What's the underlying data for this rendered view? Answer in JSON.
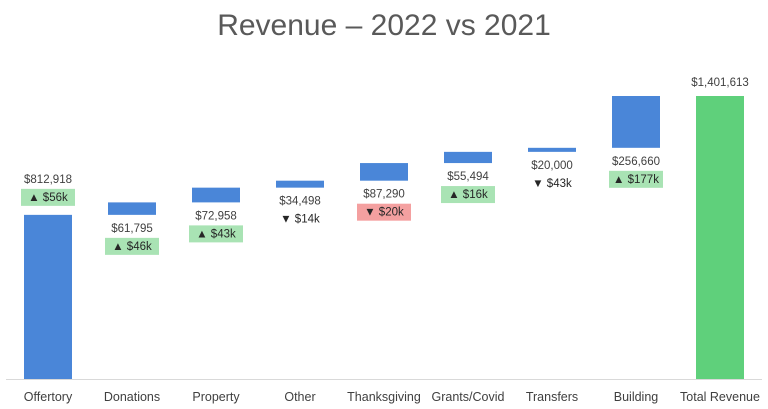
{
  "chart_data": {
    "type": "bar",
    "subtype": "waterfall",
    "title": "Revenue – 2022 vs 2021",
    "xlabel": "",
    "ylabel": "",
    "grid": false,
    "legend": "none",
    "ylim": [
      0,
      1500000
    ],
    "categories": [
      "Offertory",
      "Donations",
      "Property",
      "Other",
      "Thanksgiving",
      "Grants/Covid",
      "Transfers",
      "Building",
      "Total Revenue"
    ],
    "values": [
      812918,
      61795,
      72958,
      34498,
      87290,
      55494,
      20000,
      256660,
      1401613
    ],
    "value_labels": [
      "$812,918",
      "$61,795",
      "$72,958",
      "$34,498",
      "$87,290",
      "$55,494",
      "$20,000",
      "$256,660",
      "$1,401,613"
    ],
    "change_vs_prior_year": [
      {
        "direction": "up",
        "text": "$56k",
        "highlight": "green"
      },
      {
        "direction": "up",
        "text": "$46k",
        "highlight": "green"
      },
      {
        "direction": "up",
        "text": "$43k",
        "highlight": "green"
      },
      {
        "direction": "down",
        "text": "$14k",
        "highlight": "none"
      },
      {
        "direction": "down",
        "text": "$20k",
        "highlight": "red"
      },
      {
        "direction": "up",
        "text": "$16k",
        "highlight": "green"
      },
      {
        "direction": "down",
        "text": "$43k",
        "highlight": "none"
      },
      {
        "direction": "up",
        "text": "$177k",
        "highlight": "green"
      },
      null
    ],
    "is_total": [
      false,
      false,
      false,
      false,
      false,
      false,
      false,
      false,
      true
    ],
    "colors": {
      "increase_bar": "#4a86d8",
      "total_bar": "#5fd07b",
      "up_highlight": "#a9e3b4",
      "down_highlight": "#f4a0a0",
      "axis": "#d9d9d9"
    }
  }
}
